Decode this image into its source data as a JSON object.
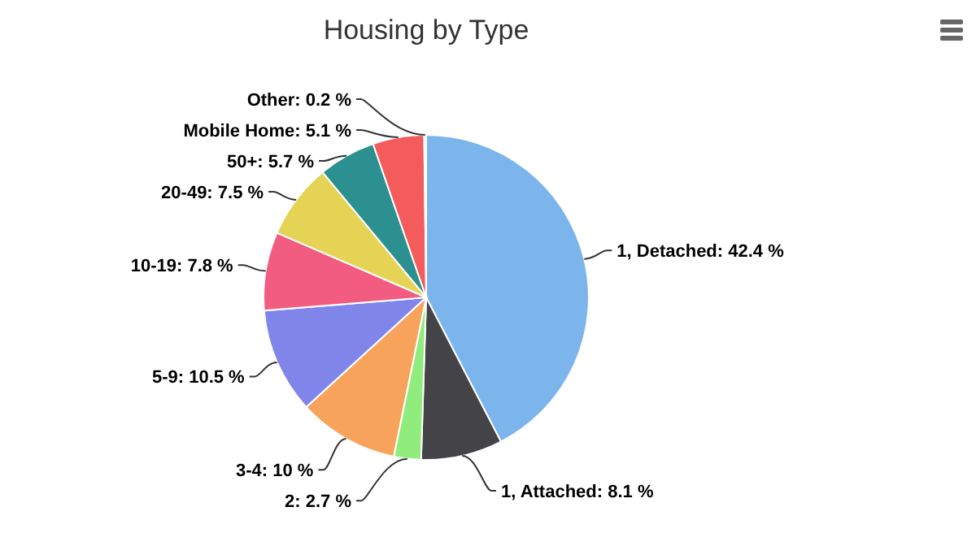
{
  "chart_data": {
    "type": "pie",
    "title": "Housing by Type",
    "categories": [
      "1, Detached",
      "1, Attached",
      "2",
      "3-4",
      "5-9",
      "10-19",
      "20-49",
      "50+",
      "Mobile Home",
      "Other"
    ],
    "values": [
      42.4,
      8.1,
      2.7,
      10,
      10.5,
      7.8,
      7.5,
      5.7,
      5.1,
      0.2
    ],
    "value_labels": [
      "42.4 %",
      "8.1 %",
      "2.7 %",
      "10 %",
      "10.5 %",
      "7.8 %",
      "7.5 %",
      "5.7 %",
      "5.1 %",
      "0.2 %"
    ],
    "colors": [
      "#7cb5ec",
      "#434348",
      "#90ed7d",
      "#f7a35c",
      "#8085e9",
      "#f15c80",
      "#e4d354",
      "#2b908f",
      "#f45b5b",
      "#91e8e1"
    ]
  }
}
